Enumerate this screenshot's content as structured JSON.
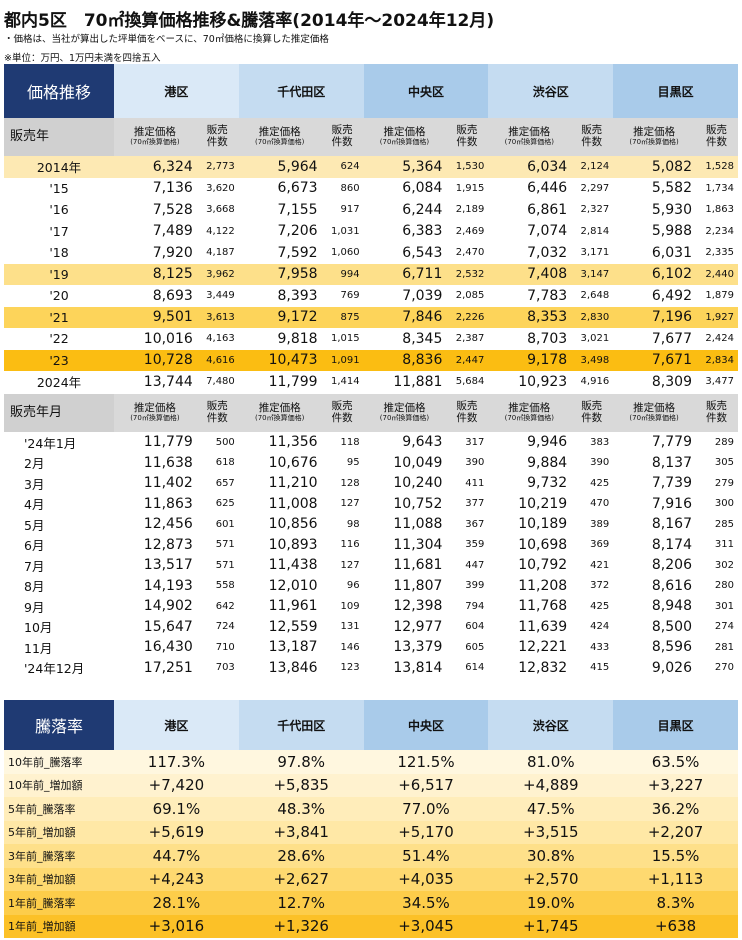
{
  "title": "都内5区　70㎡換算価格推移&騰落率(2014年～2024年12月)",
  "note1": "・価格は、当社が算出した坪単価をベースに、70㎡価格に換算した推定価格",
  "note2": "※単位：万円、1万円未満を四捨五入",
  "badge1": "価格推移",
  "badge2": "騰落率",
  "districts": [
    "港区",
    "千代田区",
    "中央区",
    "渋谷区",
    "目黒区"
  ],
  "colors": {
    "header_bg": [
      "#dae9f7",
      "#c5dcf1",
      "#a9cbea",
      "#c5dcf1",
      "#a9cbea"
    ],
    "badge": "#1f3a73"
  },
  "price_label": "推定価格",
  "price_sub": "(70㎡換算価格)",
  "sales_label": [
    "販売",
    "件数"
  ],
  "annual": {
    "label": "販売年",
    "rows": [
      {
        "l": "2014年",
        "v": [
          "6,324",
          "2,773",
          "5,964",
          "624",
          "5,364",
          "1,530",
          "6,034",
          "2,124",
          "5,082",
          "1,528"
        ],
        "hl": "#fde9b3"
      },
      {
        "l": "'15",
        "v": [
          "7,136",
          "3,620",
          "6,673",
          "860",
          "6,084",
          "1,915",
          "6,446",
          "2,297",
          "5,582",
          "1,734"
        ],
        "hl": ""
      },
      {
        "l": "'16",
        "v": [
          "7,528",
          "3,668",
          "7,155",
          "917",
          "6,244",
          "2,189",
          "6,861",
          "2,327",
          "5,930",
          "1,863"
        ],
        "hl": ""
      },
      {
        "l": "'17",
        "v": [
          "7,489",
          "4,122",
          "7,206",
          "1,031",
          "6,383",
          "2,469",
          "7,074",
          "2,814",
          "5,988",
          "2,234"
        ],
        "hl": ""
      },
      {
        "l": "'18",
        "v": [
          "7,920",
          "4,187",
          "7,592",
          "1,060",
          "6,543",
          "2,470",
          "7,032",
          "3,171",
          "6,031",
          "2,335"
        ],
        "hl": ""
      },
      {
        "l": "'19",
        "v": [
          "8,125",
          "3,962",
          "7,958",
          "994",
          "6,711",
          "2,532",
          "7,408",
          "3,147",
          "6,102",
          "2,440"
        ],
        "hl": "#fde08a"
      },
      {
        "l": "'20",
        "v": [
          "8,693",
          "3,449",
          "8,393",
          "769",
          "7,039",
          "2,085",
          "7,783",
          "2,648",
          "6,492",
          "1,879"
        ],
        "hl": ""
      },
      {
        "l": "'21",
        "v": [
          "9,501",
          "3,613",
          "9,172",
          "875",
          "7,846",
          "2,226",
          "8,353",
          "2,830",
          "7,196",
          "1,927"
        ],
        "hl": "#fdd45a"
      },
      {
        "l": "'22",
        "v": [
          "10,016",
          "4,163",
          "9,818",
          "1,015",
          "8,345",
          "2,387",
          "8,703",
          "3,021",
          "7,677",
          "2,424"
        ],
        "hl": ""
      },
      {
        "l": "'23",
        "v": [
          "10,728",
          "4,616",
          "10,473",
          "1,091",
          "8,836",
          "2,447",
          "9,178",
          "3,498",
          "7,671",
          "2,834"
        ],
        "hl": "#fbbd12"
      },
      {
        "l": "2024年",
        "v": [
          "13,744",
          "7,480",
          "11,799",
          "1,414",
          "11,881",
          "5,684",
          "10,923",
          "4,916",
          "8,309",
          "3,477"
        ],
        "hl": ""
      }
    ]
  },
  "monthly": {
    "label": "販売年月",
    "rows": [
      {
        "l": "'24年1月",
        "v": [
          "11,779",
          "500",
          "11,356",
          "118",
          "9,643",
          "317",
          "9,946",
          "383",
          "7,779",
          "289"
        ]
      },
      {
        "l": "2月",
        "v": [
          "11,638",
          "618",
          "10,676",
          "95",
          "10,049",
          "390",
          "9,884",
          "390",
          "8,137",
          "305"
        ]
      },
      {
        "l": "3月",
        "v": [
          "11,402",
          "657",
          "11,210",
          "128",
          "10,240",
          "411",
          "9,732",
          "425",
          "7,739",
          "279"
        ]
      },
      {
        "l": "4月",
        "v": [
          "11,863",
          "625",
          "11,008",
          "127",
          "10,752",
          "377",
          "10,219",
          "470",
          "7,916",
          "300"
        ]
      },
      {
        "l": "5月",
        "v": [
          "12,456",
          "601",
          "10,856",
          "98",
          "11,088",
          "367",
          "10,189",
          "389",
          "8,167",
          "285"
        ]
      },
      {
        "l": "6月",
        "v": [
          "12,873",
          "571",
          "10,893",
          "116",
          "11,304",
          "359",
          "10,698",
          "369",
          "8,174",
          "311"
        ]
      },
      {
        "l": "7月",
        "v": [
          "13,517",
          "571",
          "11,438",
          "127",
          "11,681",
          "447",
          "10,792",
          "421",
          "8,206",
          "302"
        ]
      },
      {
        "l": "8月",
        "v": [
          "14,193",
          "558",
          "12,010",
          "96",
          "11,807",
          "399",
          "11,208",
          "372",
          "8,616",
          "280"
        ]
      },
      {
        "l": "9月",
        "v": [
          "14,902",
          "642",
          "11,961",
          "109",
          "12,398",
          "794",
          "11,768",
          "425",
          "8,948",
          "301"
        ]
      },
      {
        "l": "10月",
        "v": [
          "15,647",
          "724",
          "12,559",
          "131",
          "12,977",
          "604",
          "11,639",
          "424",
          "8,500",
          "274"
        ]
      },
      {
        "l": "11月",
        "v": [
          "16,430",
          "710",
          "13,187",
          "146",
          "13,379",
          "605",
          "12,221",
          "433",
          "8,596",
          "281"
        ]
      },
      {
        "l": "'24年12月",
        "v": [
          "17,251",
          "703",
          "13,846",
          "123",
          "13,814",
          "614",
          "12,832",
          "415",
          "9,026",
          "270"
        ]
      }
    ]
  },
  "rates": [
    {
      "l": "10年前_騰落率",
      "v": [
        "117.3%",
        "97.8%",
        "121.5%",
        "81.0%",
        "63.5%"
      ],
      "bg": "#fff7df"
    },
    {
      "l": "10年前_増加額",
      "v": [
        "+7,420",
        "+5,835",
        "+6,517",
        "+4,889",
        "+3,227"
      ],
      "bg": "#fff2cf"
    },
    {
      "l": "5年前_騰落率",
      "v": [
        "69.1%",
        "48.3%",
        "77.0%",
        "47.5%",
        "36.2%"
      ],
      "bg": "#ffedba"
    },
    {
      "l": "5年前_増加額",
      "v": [
        "+5,619",
        "+3,841",
        "+5,170",
        "+3,515",
        "+2,207"
      ],
      "bg": "#ffe8a6"
    },
    {
      "l": "3年前_騰落率",
      "v": [
        "44.7%",
        "28.6%",
        "51.4%",
        "30.8%",
        "15.5%"
      ],
      "bg": "#fee08a"
    },
    {
      "l": "3年前_増加額",
      "v": [
        "+4,243",
        "+2,627",
        "+4,035",
        "+2,570",
        "+1,113"
      ],
      "bg": "#fed970"
    },
    {
      "l": "1年前_騰落率",
      "v": [
        "28.1%",
        "12.7%",
        "34.5%",
        "19.0%",
        "8.3%"
      ],
      "bg": "#fdcd4a"
    },
    {
      "l": "1年前_増加額",
      "v": [
        "+3,016",
        "+1,326",
        "+3,045",
        "+1,745",
        "+638"
      ],
      "bg": "#fcc127"
    }
  ]
}
